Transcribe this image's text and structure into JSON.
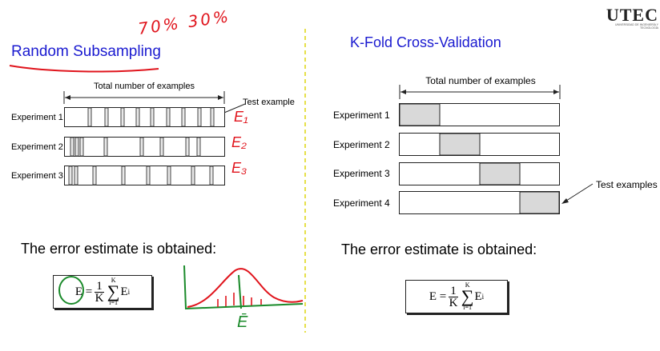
{
  "handwriting": {
    "top_note": "70% 30%",
    "e1": "E₁",
    "e2": "E₂",
    "e3": "E₃",
    "e_bar": "Ē"
  },
  "logo": {
    "text": "UTEC",
    "subtext": "UNIVERSIDAD DE INGENIERÍA Y TECNOLOGÍA"
  },
  "left": {
    "title": "Random Subsampling",
    "total_label": "Total number of examples",
    "test_label": "Test example",
    "experiments": [
      "Experiment 1",
      "Experiment 2",
      "Experiment 3"
    ],
    "estimate_text": "The error estimate is obtained:"
  },
  "right": {
    "title": "K-Fold Cross-Validation",
    "total_label": "Total number of examples",
    "test_label": "Test examples",
    "experiments": [
      "Experiment 1",
      "Experiment 2",
      "Experiment 3",
      "Experiment 4"
    ],
    "estimate_text": "The error estimate is obtained:"
  },
  "formula": {
    "lhs": "E =",
    "num": "1",
    "den": "K",
    "upper": "K",
    "lower": "i=1",
    "term": "E",
    "sub": "i"
  },
  "colors": {
    "title": "#1a1ad0",
    "handwriting_red": "#e0141c",
    "handwriting_green": "#1a8a2a",
    "divider": "#e6e04a",
    "fold": "#d9d9d9"
  }
}
